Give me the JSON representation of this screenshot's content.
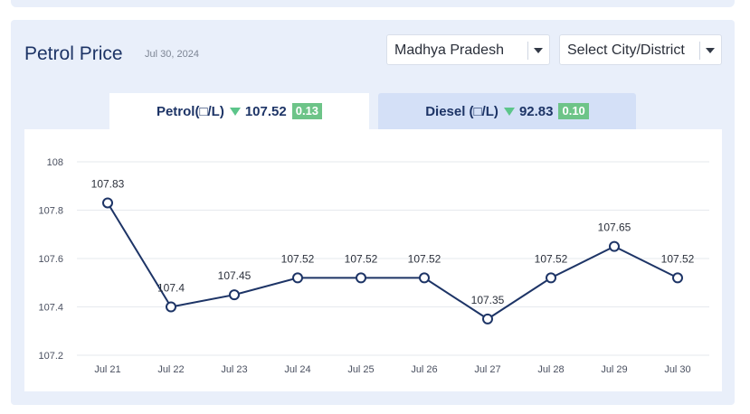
{
  "header": {
    "title": "Petrol Price",
    "date": "Jul 30, 2024"
  },
  "selects": {
    "state": "Madhya Pradesh",
    "city": "Select City/District"
  },
  "tabs": {
    "petrol": {
      "label": "Petrol(□/L)",
      "price": "107.52",
      "change": "0.13"
    },
    "diesel": {
      "label": "Diesel (□/L)",
      "price": "92.83",
      "change": "0.10"
    }
  },
  "chart_data": {
    "type": "line",
    "categories": [
      "Jul 21",
      "Jul 22",
      "Jul 23",
      "Jul 24",
      "Jul 25",
      "Jul 26",
      "Jul 27",
      "Jul 28",
      "Jul 29",
      "Jul 30"
    ],
    "values": [
      107.83,
      107.4,
      107.45,
      107.52,
      107.52,
      107.52,
      107.35,
      107.52,
      107.65,
      107.52
    ],
    "data_labels": [
      "107.83",
      "107.4",
      "107.45",
      "107.52",
      "107.52",
      "107.52",
      "107.35",
      "107.52",
      "107.65",
      "107.52"
    ],
    "y_ticks": [
      "107.2",
      "107.4",
      "107.6",
      "107.8",
      "108"
    ],
    "ylim": [
      107.2,
      108
    ],
    "grid": true,
    "line_color": "#1d3466",
    "gridline_color": "#e6e9ee"
  },
  "colors": {
    "accent": "#1d3466",
    "change_badge": "#6dc488",
    "down_triangle": "#5cc58a"
  }
}
